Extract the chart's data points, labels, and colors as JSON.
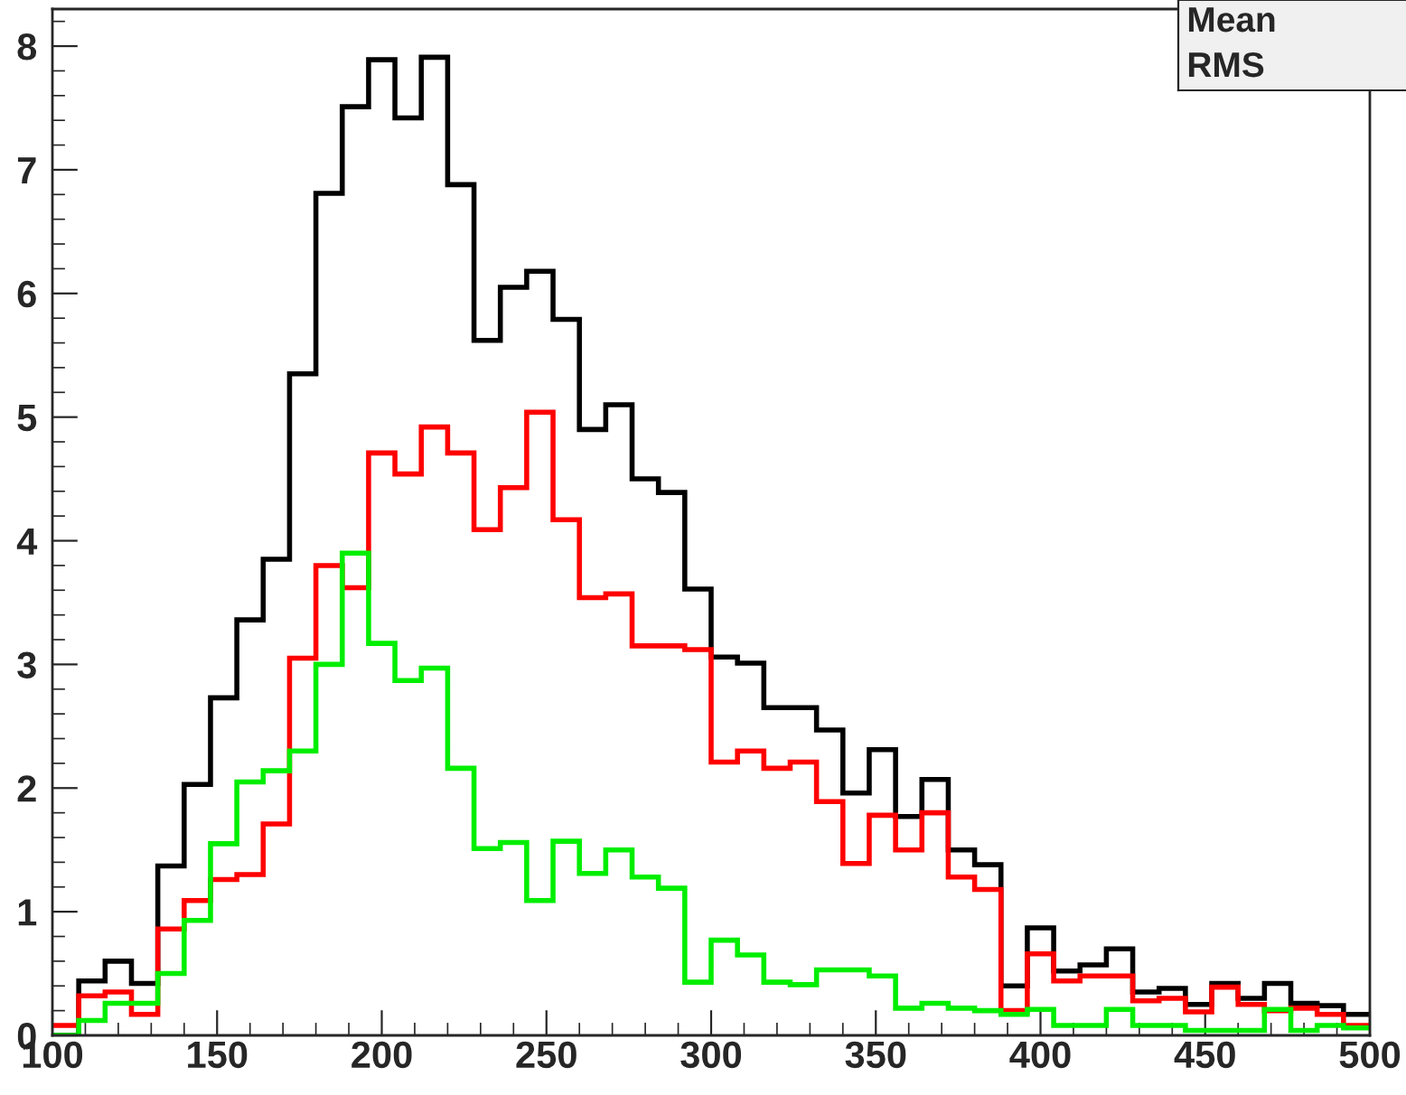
{
  "chart_data": {
    "type": "histogram",
    "bins": [
      100,
      108,
      116,
      124,
      132,
      140,
      148,
      156,
      164,
      172,
      180,
      188,
      196,
      204,
      212,
      220,
      228,
      236,
      244,
      252,
      260,
      268,
      276,
      284,
      292,
      300,
      308,
      316,
      324,
      332,
      340,
      348,
      356,
      364,
      372,
      380,
      388,
      396,
      404,
      412,
      420,
      428,
      436,
      444,
      452,
      460,
      468,
      476,
      484,
      492,
      500
    ],
    "series": [
      {
        "color": "#000000",
        "values": [
          0,
          0.44,
          0.6,
          0.42,
          1.37,
          2.03,
          2.73,
          3.36,
          3.85,
          5.35,
          6.81,
          7.51,
          7.89,
          7.42,
          7.91,
          6.88,
          5.62,
          6.05,
          6.18,
          5.79,
          4.9,
          5.1,
          4.5,
          4.39,
          3.61,
          3.06,
          3.01,
          2.65,
          2.65,
          2.47,
          1.96,
          2.31,
          1.77,
          2.07,
          1.5,
          1.38,
          0.4,
          0.87,
          0.52,
          0.57,
          0.7,
          0.35,
          0.38,
          0.25,
          0.42,
          0.3,
          0.42,
          0.26,
          0.24,
          0.17
        ]
      },
      {
        "color": "#ff0000",
        "values": [
          0.08,
          0.32,
          0.35,
          0.17,
          0.86,
          1.09,
          1.26,
          1.3,
          1.71,
          3.05,
          3.8,
          3.62,
          4.71,
          4.54,
          4.92,
          4.71,
          4.09,
          4.43,
          5.04,
          4.17,
          3.54,
          3.57,
          3.15,
          3.15,
          3.12,
          2.21,
          2.3,
          2.16,
          2.21,
          1.89,
          1.39,
          1.78,
          1.5,
          1.8,
          1.28,
          1.18,
          0.2,
          0.66,
          0.44,
          0.48,
          0.48,
          0.28,
          0.3,
          0.19,
          0.39,
          0.25,
          0.2,
          0.22,
          0.17,
          0.08
        ]
      },
      {
        "color": "#00ee00",
        "values": [
          0,
          0.12,
          0.26,
          0.26,
          0.5,
          0.93,
          1.55,
          2.05,
          2.14,
          2.3,
          3.0,
          3.9,
          3.17,
          2.87,
          2.97,
          2.16,
          1.51,
          1.56,
          1.09,
          1.57,
          1.31,
          1.5,
          1.28,
          1.19,
          0.43,
          0.77,
          0.65,
          0.43,
          0.41,
          0.53,
          0.53,
          0.48,
          0.22,
          0.26,
          0.22,
          0.2,
          0.17,
          0.21,
          0.08,
          0.08,
          0.21,
          0.08,
          0.08,
          0.04,
          0.04,
          0.04,
          0.21,
          0.04,
          0.08,
          0.06
        ]
      }
    ],
    "xlim": [
      100,
      500
    ],
    "ylim": [
      0,
      8.3
    ],
    "xticks": [
      100,
      150,
      200,
      250,
      300,
      350,
      400,
      450,
      500
    ],
    "yticks": [
      0,
      1,
      2,
      3,
      4,
      5,
      6,
      7,
      8
    ],
    "grid": false,
    "legend": false,
    "annotations": [
      "Mean",
      "RMS"
    ]
  }
}
